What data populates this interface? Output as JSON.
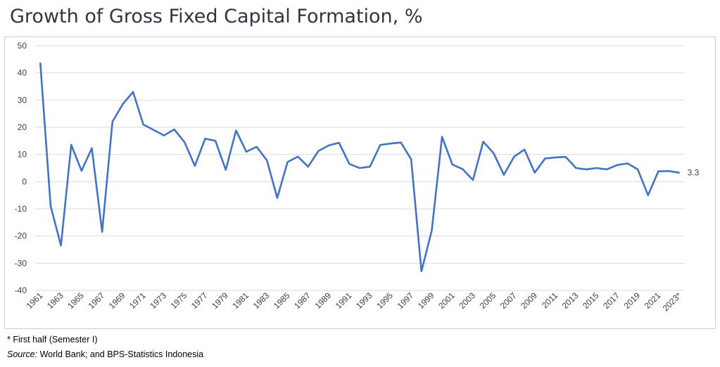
{
  "title": "Growth of Gross Fixed Capital Formation, %",
  "footnote": "* First half (Semester I)",
  "source_label": "Source:",
  "source_text": " World Bank; and BPS-Statistics Indonesia",
  "colors": {
    "line": "#4472c4",
    "grid": "#d9d9d9",
    "text": "#404040"
  },
  "chart_data": {
    "type": "line",
    "title": "Growth of Gross Fixed Capital Formation, %",
    "xlabel": "",
    "ylabel": "",
    "ylim": [
      -40,
      50
    ],
    "yticks": [
      50,
      40,
      30,
      20,
      10,
      0,
      -10,
      -20,
      -30,
      -40
    ],
    "grid": true,
    "x": [
      "1961",
      "1962",
      "1963",
      "1964",
      "1965",
      "1966",
      "1967",
      "1968",
      "1969",
      "1970",
      "1971",
      "1972",
      "1973",
      "1974",
      "1975",
      "1976",
      "1977",
      "1978",
      "1979",
      "1980",
      "1981",
      "1982",
      "1983",
      "1984",
      "1985",
      "1986",
      "1987",
      "1988",
      "1989",
      "1990",
      "1991",
      "1992",
      "1993",
      "1994",
      "1995",
      "1996",
      "1997",
      "1998",
      "1999",
      "2000",
      "2001",
      "2002",
      "2003",
      "2004",
      "2005",
      "2006",
      "2007",
      "2008",
      "2009",
      "2010",
      "2011",
      "2012",
      "2013",
      "2014",
      "2015",
      "2016",
      "2017",
      "2018",
      "2019",
      "2020",
      "2021",
      "2022",
      "2023*"
    ],
    "xtick_labels": [
      "1961",
      "1963",
      "1965",
      "1967",
      "1969",
      "1971",
      "1973",
      "1975",
      "1977",
      "1979",
      "1981",
      "1983",
      "1985",
      "1987",
      "1989",
      "1991",
      "1993",
      "1995",
      "1997",
      "1999",
      "2001",
      "2003",
      "2005",
      "2007",
      "2009",
      "2011",
      "2013",
      "2015",
      "2017",
      "2019",
      "2021",
      "2023*"
    ],
    "series": [
      {
        "values": [
          43.5,
          -9,
          -23.5,
          13.5,
          4,
          12.3,
          -18.5,
          22,
          28.5,
          33,
          21,
          19,
          17,
          19.2,
          14.5,
          5.8,
          15.8,
          15,
          4.3,
          18.8,
          11,
          12.8,
          7.8,
          -6,
          7.2,
          9.2,
          5.5,
          11.3,
          13.3,
          14.3,
          6.5,
          5,
          5.5,
          13.5,
          14,
          14.4,
          8.2,
          -33,
          -18,
          16.5,
          6.3,
          4.6,
          0.6,
          14.7,
          10.5,
          2.5,
          9.2,
          11.8,
          3.3,
          8.5,
          8.9,
          9.1,
          5,
          4.5,
          5,
          4.5,
          6.1,
          6.7,
          4.5,
          -5,
          3.8,
          3.9,
          3.3
        ]
      }
    ],
    "annotations": [
      {
        "x": "2023*",
        "text": "3.3"
      }
    ]
  }
}
